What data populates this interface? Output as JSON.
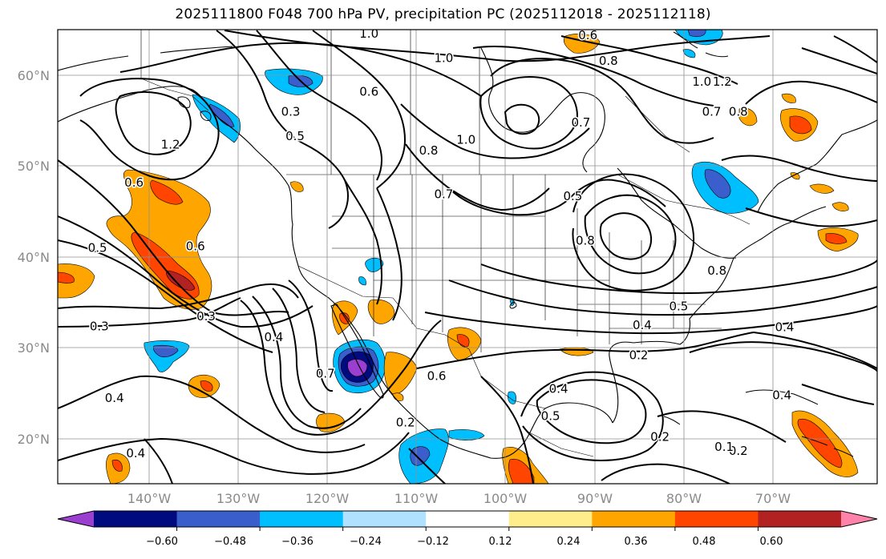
{
  "title": "2025111800 F048 700 hPa PV, precipitation PC (2025112018 - 2025112118)",
  "lat_labels": [
    "60°N",
    "50°N",
    "40°N",
    "30°N",
    "20°N"
  ],
  "lon_labels": [
    "140°W",
    "130°W",
    "120°W",
    "110°W",
    "100°W",
    "90°W",
    "80°W",
    "70°W"
  ],
  "colorbar": {
    "tick_labels": [
      "−0.60",
      "−0.48",
      "−0.36",
      "−0.24",
      "−0.12",
      "0.12",
      "0.24",
      "0.36",
      "0.48",
      "0.60"
    ],
    "colors": [
      "#9b3fd1",
      "#000b80",
      "#3a5fcd",
      "#00bfff",
      "#b0e2ff",
      "#ffffff",
      "#ffec8b",
      "#ffa500",
      "#ff4500",
      "#b22222",
      "#ff82ab"
    ]
  },
  "contour_labels": [
    {
      "text": "1.0",
      "lon": -115.3,
      "lat": 64.6
    },
    {
      "text": "1.0",
      "lon": -106.9,
      "lat": 61.9
    },
    {
      "text": "0.6",
      "lon": -90.7,
      "lat": 64.4
    },
    {
      "text": "0.8",
      "lon": -88.4,
      "lat": 61.6
    },
    {
      "text": "1.0",
      "lon": -77.9,
      "lat": 59.3
    },
    {
      "text": "1.2",
      "lon": -75.6,
      "lat": 59.3
    },
    {
      "text": "0.7",
      "lon": -76.8,
      "lat": 56.0
    },
    {
      "text": "0.8",
      "lon": -73.8,
      "lat": 56.0
    },
    {
      "text": "0.7",
      "lon": -91.5,
      "lat": 54.8
    },
    {
      "text": "1.0",
      "lon": -104.4,
      "lat": 52.9
    },
    {
      "text": "0.8",
      "lon": -108.6,
      "lat": 51.7
    },
    {
      "text": "0.3",
      "lon": -124.1,
      "lat": 56.0
    },
    {
      "text": "0.6",
      "lon": -115.3,
      "lat": 58.2
    },
    {
      "text": "0.5",
      "lon": -123.6,
      "lat": 53.3
    },
    {
      "text": "1.2",
      "lon": -137.6,
      "lat": 52.4
    },
    {
      "text": "0.6",
      "lon": -141.7,
      "lat": 48.2
    },
    {
      "text": "0.7",
      "lon": -106.9,
      "lat": 46.9
    },
    {
      "text": "0.5",
      "lon": -92.4,
      "lat": 46.7
    },
    {
      "text": "0.8",
      "lon": -91.0,
      "lat": 41.8
    },
    {
      "text": "0.5",
      "lon": -145.8,
      "lat": 41.0
    },
    {
      "text": "0.6",
      "lon": -134.8,
      "lat": 41.2
    },
    {
      "text": "0.3",
      "lon": -133.6,
      "lat": 33.5
    },
    {
      "text": "0.4",
      "lon": -126.0,
      "lat": 31.2
    },
    {
      "text": "0.7",
      "lon": -120.2,
      "lat": 27.2
    },
    {
      "text": "0.3",
      "lon": -145.6,
      "lat": 32.4
    },
    {
      "text": "0.4",
      "lon": -143.9,
      "lat": 24.5
    },
    {
      "text": "0.4",
      "lon": -141.5,
      "lat": 18.4
    },
    {
      "text": "0.2",
      "lon": -111.2,
      "lat": 21.8
    },
    {
      "text": "0.6",
      "lon": -107.7,
      "lat": 26.9
    },
    {
      "text": "0.5",
      "lon": -80.5,
      "lat": 34.6
    },
    {
      "text": "0.4",
      "lon": -84.6,
      "lat": 32.5
    },
    {
      "text": "0.2",
      "lon": -85.0,
      "lat": 29.2
    },
    {
      "text": "0.4",
      "lon": -94.0,
      "lat": 25.5
    },
    {
      "text": "0.5",
      "lon": -94.9,
      "lat": 22.5
    },
    {
      "text": "0.2",
      "lon": -82.6,
      "lat": 20.2
    },
    {
      "text": "0.8",
      "lon": -76.2,
      "lat": 38.5
    },
    {
      "text": "0.4",
      "lon": -68.6,
      "lat": 32.3
    },
    {
      "text": "0.4",
      "lon": -68.9,
      "lat": 24.8
    },
    {
      "text": "0.2",
      "lon": -73.8,
      "lat": 18.7
    },
    {
      "text": "0.1",
      "lon": -75.4,
      "lat": 19.1
    }
  ]
}
